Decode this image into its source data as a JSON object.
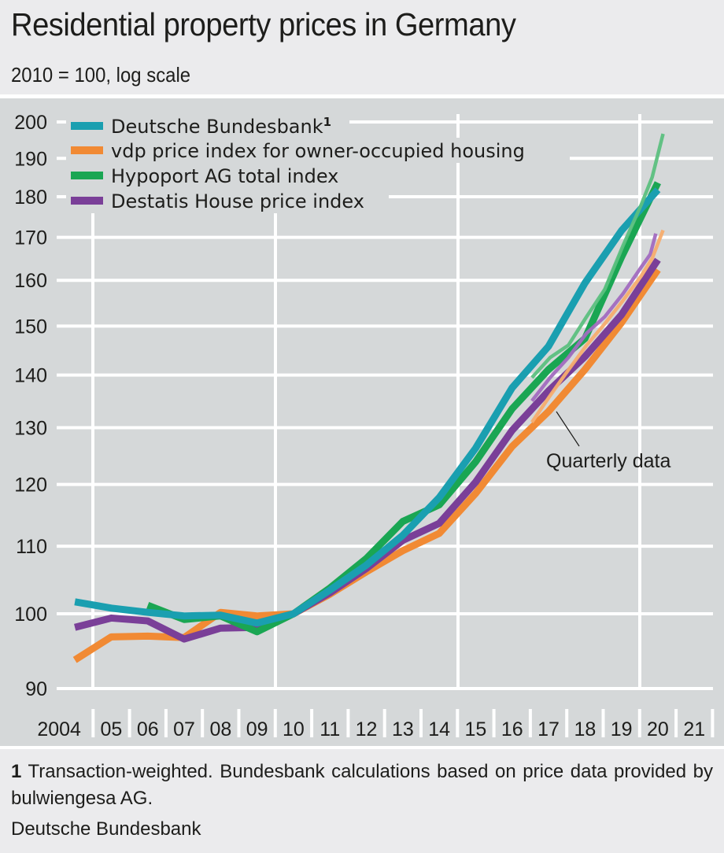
{
  "header": {
    "title": "Residential property prices in Germany",
    "subtitle": "2010 = 100, log scale"
  },
  "footer": {
    "footnote_marker": "1",
    "footnote_text": " Transaction-weighted. Bundesbank calculations based on price data provided by bulwiengesa AG.",
    "source": "Deutsche Bundesbank"
  },
  "chart_data": {
    "type": "line",
    "title": "Residential property prices in Germany",
    "subtitle": "2010 = 100, log scale",
    "xlabel": "",
    "ylabel": "",
    "y_scale": "log",
    "ylim": [
      88,
      203
    ],
    "xlim": [
      2004,
      2022
    ],
    "grid": true,
    "legend_placement": "top-left",
    "y_ticks": [
      90,
      100,
      110,
      120,
      130,
      140,
      150,
      160,
      170,
      180,
      190,
      200
    ],
    "x_tick_labels": [
      "2004",
      "05",
      "06",
      "07",
      "08",
      "09",
      "10",
      "11",
      "12",
      "13",
      "14",
      "15",
      "16",
      "17",
      "18",
      "19",
      "20",
      "21"
    ],
    "x_major_gridlines": [
      2004,
      2010,
      2015,
      2020
    ],
    "x": [
      2004,
      2005,
      2006,
      2007,
      2008,
      2009,
      2010,
      2011,
      2012,
      2013,
      2014,
      2015,
      2016,
      2017,
      2018,
      2019,
      2020
    ],
    "series": [
      {
        "name": "Deutsche Bundesbank",
        "superscript": "1",
        "color": "#1a9fb0",
        "values": [
          101.7,
          100.8,
          100.2,
          99.7,
          99.8,
          98.7,
          100,
          103.4,
          107.1,
          111.7,
          117.8,
          126.3,
          137.5,
          145.8,
          159.4,
          171.6,
          181.8
        ]
      },
      {
        "name": "vdp price index for owner-occupied housing",
        "color": "#f18a34",
        "values": [
          93.7,
          96.8,
          96.9,
          96.7,
          100.2,
          99.7,
          100,
          102.8,
          106.1,
          109.3,
          112.0,
          118.5,
          126.6,
          133.0,
          141.1,
          150.7,
          162.4
        ]
      },
      {
        "name": "Hypoport AG total index",
        "color": "#1aa653",
        "values": [
          null,
          null,
          101.2,
          99.2,
          99.7,
          97.5,
          100,
          103.7,
          108.1,
          113.9,
          116.6,
          123.9,
          133.5,
          141.1,
          147.4,
          165.3,
          183.6
        ]
      },
      {
        "name": "Destatis House price index",
        "color": "#7a3f98",
        "values": [
          98.1,
          99.4,
          99.0,
          96.5,
          98.0,
          98.1,
          100,
          103.0,
          106.6,
          110.9,
          113.6,
          120.4,
          129.5,
          136.9,
          143.7,
          152.4,
          164.7
        ]
      }
    ],
    "quarterly_series": [
      {
        "name": "Hypoport AG total index (quarterly)",
        "color": "#5cc080",
        "x": [
          2017.0,
          2017.5,
          2018.0,
          2018.5,
          2019.0,
          2019.5,
          2020.0,
          2020.3,
          2020.6
        ],
        "values": [
          139.5,
          143.5,
          146.0,
          152.0,
          158.0,
          168.0,
          178.0,
          185.0,
          196.7
        ]
      },
      {
        "name": "Destatis House price index (quarterly)",
        "color": "#a26bc0",
        "x": [
          2017.0,
          2017.5,
          2018.0,
          2018.5,
          2019.0,
          2019.5,
          2020.0,
          2020.25,
          2020.4
        ],
        "values": [
          135.0,
          139.5,
          143.5,
          148.5,
          152.0,
          157.0,
          163.0,
          166.0,
          170.9
        ]
      },
      {
        "name": "vdp price index for owner-occupied housing (quarterly)",
        "color": "#f7ad6e",
        "x": [
          2017.0,
          2017.5,
          2018.0,
          2018.5,
          2019.0,
          2019.5,
          2020.0,
          2020.3,
          2020.6
        ],
        "values": [
          131.0,
          136.0,
          141.0,
          146.0,
          150.5,
          155.5,
          161.0,
          165.0,
          171.7
        ]
      }
    ],
    "annotations": [
      {
        "text": "Quarterly data",
        "points_to": "vdp quarterly series, 2017"
      }
    ]
  }
}
